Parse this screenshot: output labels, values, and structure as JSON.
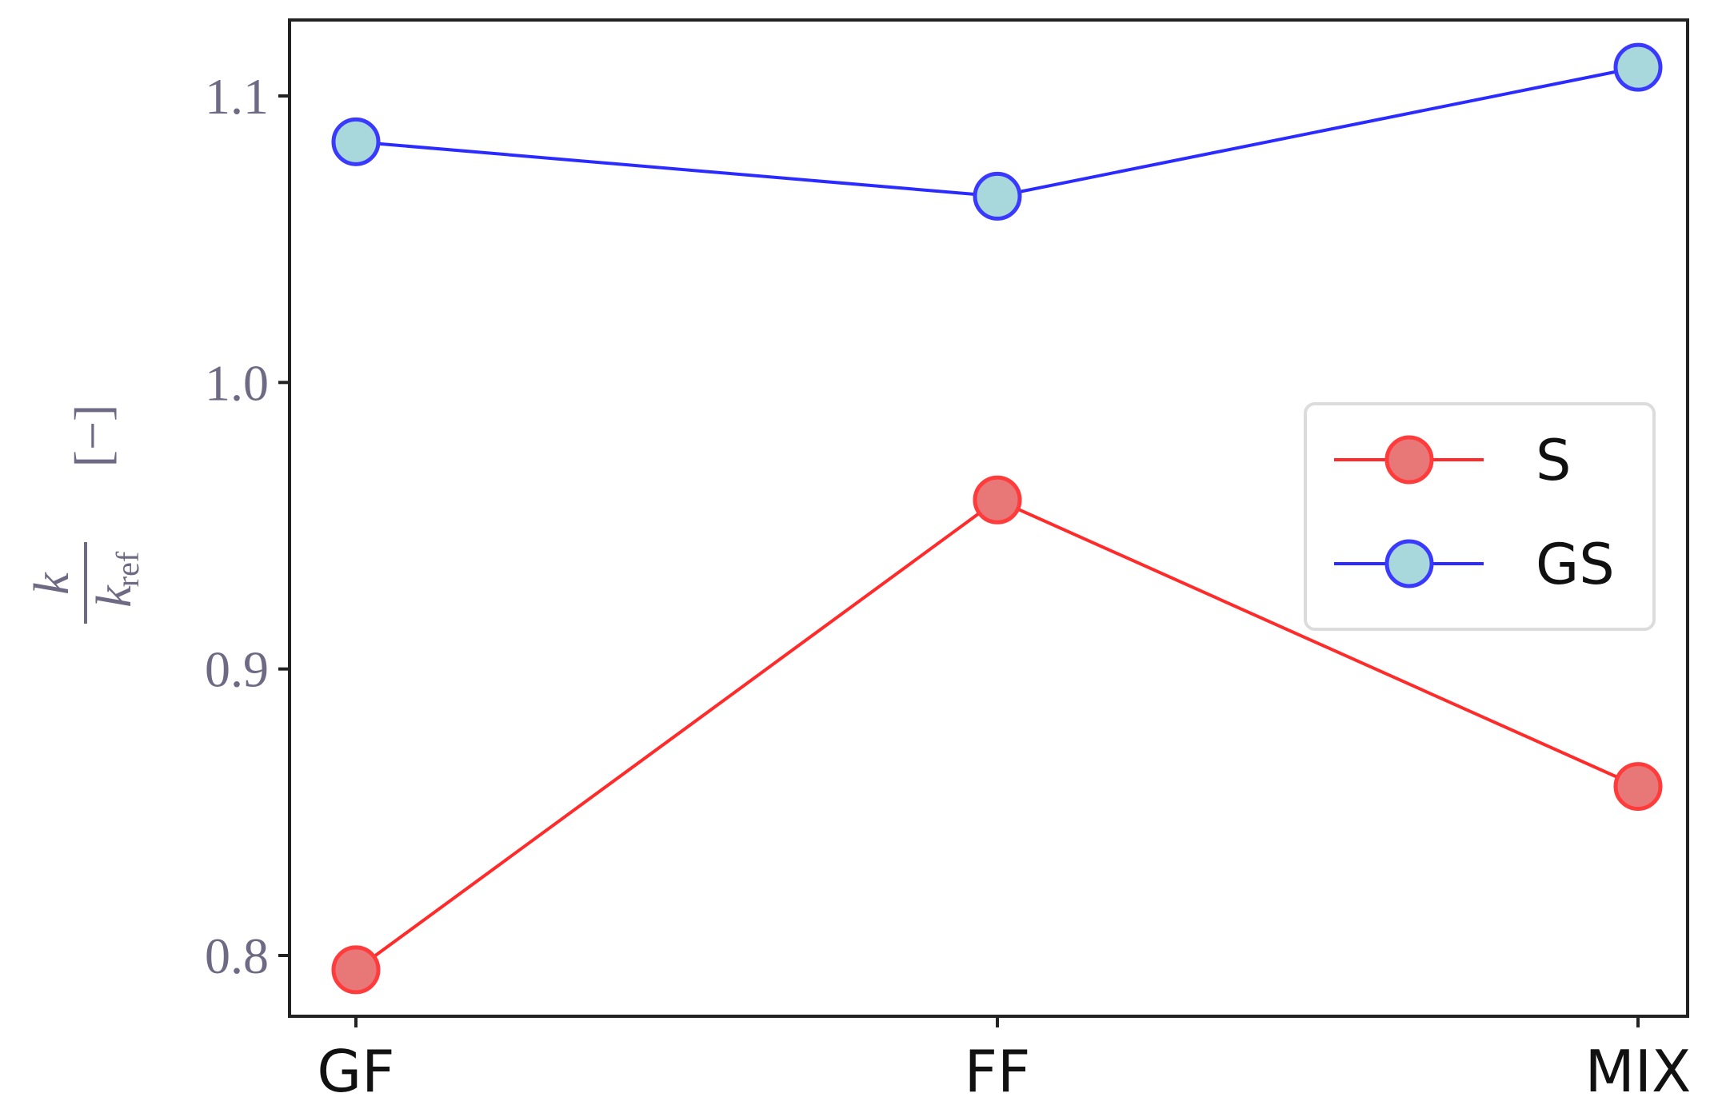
{
  "chart_data": {
    "type": "line",
    "categories": [
      "GF",
      "FF",
      "MIX"
    ],
    "series": [
      {
        "name": "S",
        "values": [
          0.795,
          0.959,
          0.859
        ],
        "line_color": "#ff2a2a",
        "marker_fill": "#e87878",
        "marker_edge": "#ff3b3b"
      },
      {
        "name": "GS",
        "values": [
          1.084,
          1.065,
          1.11
        ],
        "line_color": "#2b2bff",
        "marker_fill": "#a8d8dc",
        "marker_edge": "#3a3aff"
      }
    ],
    "y_ticks": [
      "0.8",
      "0.9",
      "1.0",
      "1.1"
    ],
    "ylim": [
      0.78,
      1.125
    ],
    "ylabel": {
      "numerator": "k",
      "denominator": "k",
      "denominator_sub": "ref",
      "unit": "[−]"
    },
    "title": "",
    "xlabel": "",
    "grid": false,
    "legend_position": "center-right"
  }
}
